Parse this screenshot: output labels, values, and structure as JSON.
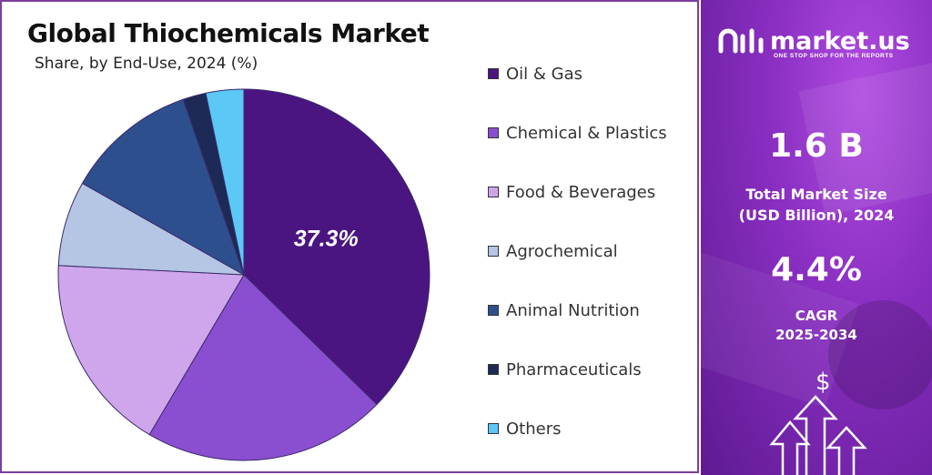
{
  "chart_data": {
    "type": "pie",
    "title": "Global Thiochemicals Market",
    "subtitle": "Share, by End-Use, 2024 (%)",
    "slices": [
      {
        "name": "Oil & Gas",
        "value": 37.3,
        "color": "#4a1580",
        "label": "37.3%"
      },
      {
        "name": "Chemical & Plastics",
        "value": 21.2,
        "color": "#8a4fd0"
      },
      {
        "name": "Food & Beverages",
        "value": 17.3,
        "color": "#cfa6ec"
      },
      {
        "name": "Agrochemical",
        "value": 7.4,
        "color": "#b4c6e4"
      },
      {
        "name": "Animal Nutrition",
        "value": 11.5,
        "color": "#2e4f8e"
      },
      {
        "name": "Pharmaceuticals",
        "value": 2.0,
        "color": "#1c2a55"
      },
      {
        "name": "Others",
        "value": 3.3,
        "color": "#5bc8f5"
      }
    ],
    "legend_position": "right"
  },
  "brand": {
    "name": "market.us",
    "tagline": "ONE STOP SHOP FOR THE REPORTS"
  },
  "stats": {
    "market_size_value": "1.6 B",
    "market_size_label_line1": "Total Market Size",
    "market_size_label_line2": "(USD Billion), 2024",
    "cagr_value": "4.4%",
    "cagr_label_line1": "CAGR",
    "cagr_label_line2": "2025-2034"
  },
  "colors": {
    "accent": "#7b3fa0",
    "panel": "#8a2fc2"
  },
  "icons": {
    "dollar": "$"
  }
}
